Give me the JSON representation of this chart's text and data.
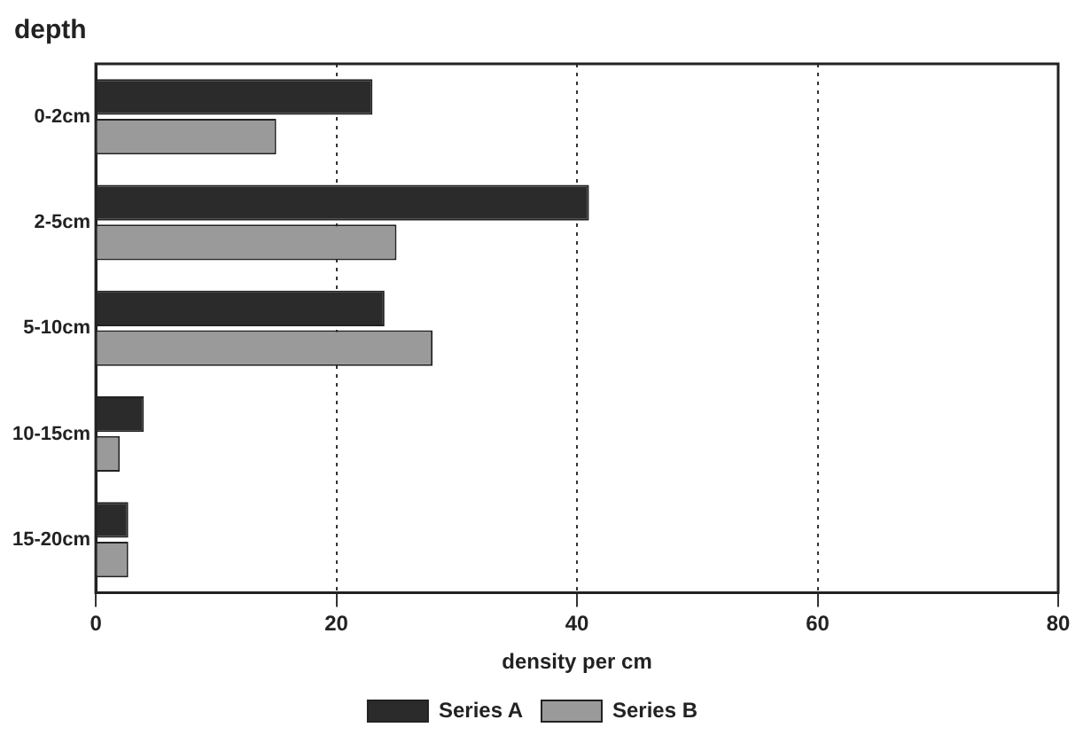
{
  "chart_data": {
    "type": "bar",
    "orientation": "horizontal",
    "ylabel": "depth",
    "xlabel": "density per cm",
    "categories": [
      "0-2cm",
      "2-5cm",
      "5-10cm",
      "10-15cm",
      "15-20cm"
    ],
    "series": [
      {
        "name": "Series A",
        "color": "#2b2b2b",
        "values": [
          23,
          41,
          24,
          4,
          2.7
        ]
      },
      {
        "name": "Series B",
        "color": "#9a9a9a",
        "values": [
          15,
          25,
          28,
          2,
          2.7
        ]
      }
    ],
    "xlim": [
      0,
      80
    ],
    "xticks": [
      0,
      20,
      40,
      60,
      80
    ],
    "grid": "x",
    "legend": "bottom"
  }
}
